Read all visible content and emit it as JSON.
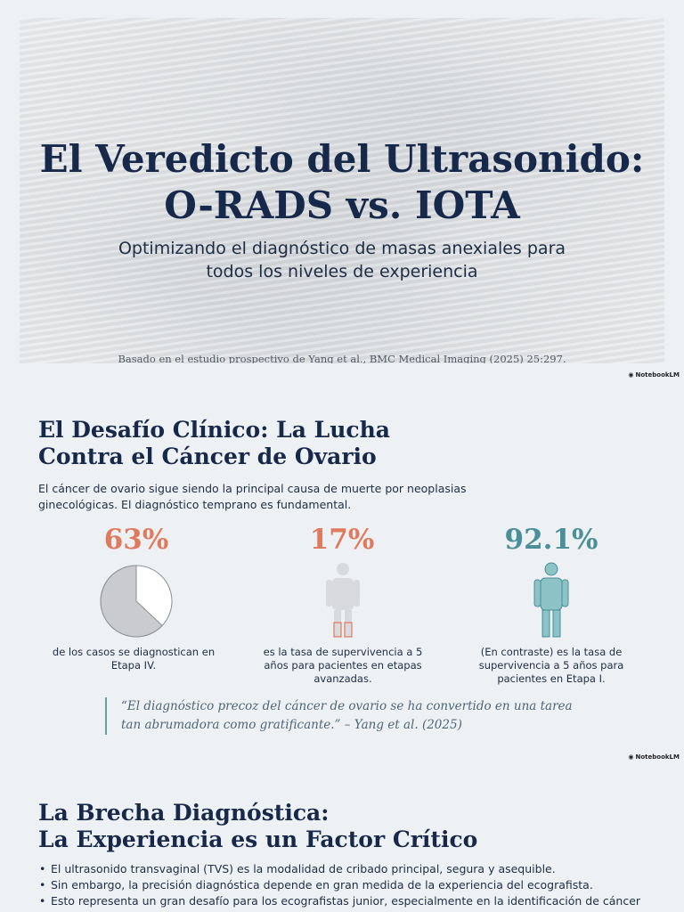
{
  "hero": {
    "title_line1": "El Veredicto del Ultrasonido:",
    "title_line2": "O-RADS vs. IOTA",
    "subtitle_line1": "Optimizando el diagnóstico de masas anexiales para",
    "subtitle_line2": "todos los niveles de experiencia",
    "citation": "Basado en el estudio prospectivo de Yang et al., BMC Medical Imaging (2025) 25:297."
  },
  "brand": "NotebookLM",
  "challenge": {
    "title_line1": "El Desafío Clínico: La Lucha",
    "title_line2": "Contra el Cáncer de Ovario",
    "intro": "El cáncer de ovario sigue siendo la principal causa de muerte por neoplasias ginecológicas. El diagnóstico temprano es fundamental.",
    "stats": [
      {
        "value": "63%",
        "fraction": 0.63,
        "description": "de los casos se diagnostican en Etapa IV.",
        "color": "#e07a5f"
      },
      {
        "value": "17%",
        "fraction": 0.17,
        "description": "es la tasa de supervivencia a 5 años para pacientes en etapas avanzadas.",
        "color": "#e07a5f"
      },
      {
        "value": "92.1%",
        "fraction": 0.921,
        "description": "(En contraste) es la tasa de supervivencia a 5 años para pacientes en Etapa I.",
        "color": "#4a8f99"
      }
    ],
    "quote_line1": "“El diagnóstico precoz del cáncer de ovario se ha convertido en una tarea",
    "quote_line2": "tan abrumadora como gratificante.” – Yang et al. (2025)"
  },
  "gap": {
    "title_line1": "La Brecha Diagnóstica:",
    "title_line2": "La Experiencia es un Factor Crítico",
    "bullets": [
      "El ultrasonido transvaginal (TVS) es la modalidad de cribado principal, segura y asequible.",
      "Sin embargo, la precisión diagnóstica depende en gran medida de la experiencia del ecografista.",
      "Esto representa un gran desafío para los ecografistas junior, especialmente en la identificación de cáncer"
    ]
  }
}
